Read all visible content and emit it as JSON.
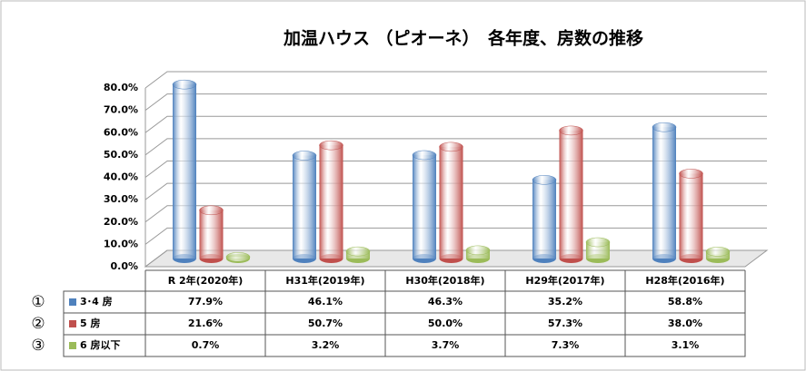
{
  "chart_data": {
    "type": "bar",
    "title": "加温ハウス （ピオーネ）　各年度、房数の推移",
    "categories": [
      "R 2年(2020年)",
      "H31年(2019年)",
      "H30年(2018年)",
      "H29年(2017年)",
      "H28年(2016年)"
    ],
    "series": [
      {
        "name": "3･4 房",
        "color": "#4f81bd",
        "values": [
          77.9,
          46.1,
          46.3,
          35.2,
          58.8
        ],
        "value_labels": [
          "77.9%",
          "46.1%",
          "46.3%",
          "35.2%",
          "58.8%"
        ]
      },
      {
        "name": "5 房",
        "color": "#c0504d",
        "values": [
          21.6,
          50.7,
          50.0,
          57.3,
          38.0
        ],
        "value_labels": [
          "21.6%",
          "50.7%",
          "50.0%",
          "57.3%",
          "38.0%"
        ]
      },
      {
        "name": "6 房以下",
        "color": "#9bbb59",
        "values": [
          0.7,
          3.2,
          3.7,
          7.3,
          3.1
        ],
        "value_labels": [
          "0.7%",
          "3.2%",
          "3.7%",
          "7.3%",
          "3.1%"
        ]
      }
    ],
    "row_markers": [
      "①",
      "②",
      "③"
    ],
    "ylim": [
      0,
      80
    ],
    "yticks": [
      {
        "value": 0,
        "label": "0.0%"
      },
      {
        "value": 10,
        "label": "10.0%"
      },
      {
        "value": 20,
        "label": "20.0%"
      },
      {
        "value": 30,
        "label": "30.0%"
      },
      {
        "value": 40,
        "label": "40.0%"
      },
      {
        "value": 50,
        "label": "50.0%"
      },
      {
        "value": 60,
        "label": "60.0%"
      },
      {
        "value": 70,
        "label": "70.0%"
      },
      {
        "value": 80,
        "label": "80.0%"
      }
    ],
    "grid": true
  }
}
